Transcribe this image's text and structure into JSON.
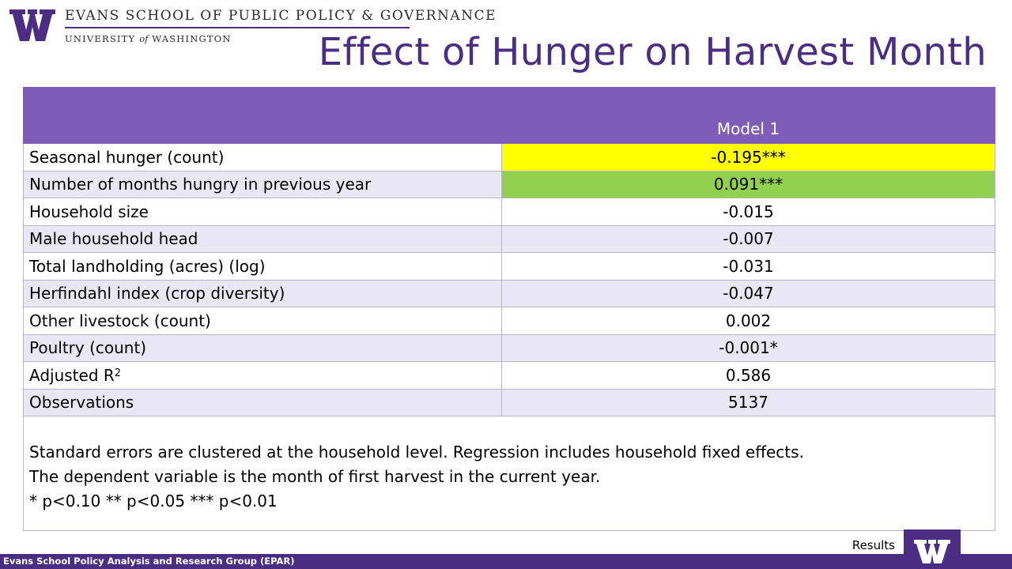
{
  "header": {
    "org_line1": "EVANS SCHOOL OF PUBLIC POLICY & GOVERNANCE",
    "org_line2_a": "UNIVERSITY",
    "org_line2_of": "of",
    "org_line2_b": "WASHINGTON",
    "logo_icon": "uw-w-logo-icon"
  },
  "title": "Effect of Hunger on Harvest Month",
  "table": {
    "column_header": "Model 1",
    "rows": [
      {
        "label": "Seasonal hunger (count)",
        "value": "-0.195***",
        "highlight": "#ffff00"
      },
      {
        "label": "Number of months hungry in previous year",
        "value": "0.091***",
        "highlight": "#92d050"
      },
      {
        "label": "Household size",
        "value": "-0.015"
      },
      {
        "label": "Male household head",
        "value": "-0.007"
      },
      {
        "label": "Total landholding (acres) (log)",
        "value": "-0.031"
      },
      {
        "label": "Herfindahl index (crop diversity)",
        "value": "-0.047"
      },
      {
        "label": "Other livestock (count)",
        "value": "0.002"
      },
      {
        "label": "Poultry (count)",
        "value": "-0.001*"
      },
      {
        "label": "Adjusted R",
        "label_sup": "2",
        "value": "0.586"
      },
      {
        "label": "Observations",
        "value": "5137"
      }
    ],
    "notes": [
      "Standard errors are clustered at the household level. Regression includes household fixed effects.",
      "The dependent variable is the month of first harvest in the current year.",
      "* p<0.10 ** p<0.05 *** p<0.01"
    ]
  },
  "footer": {
    "org_text": "Evans School Policy Analysis and Research Group (EPAR)",
    "section_label": "Results"
  },
  "colors": {
    "brand_purple": "#4b2e83",
    "header_purple": "#7e5cb8",
    "row_alt": "#e9e7f3"
  }
}
